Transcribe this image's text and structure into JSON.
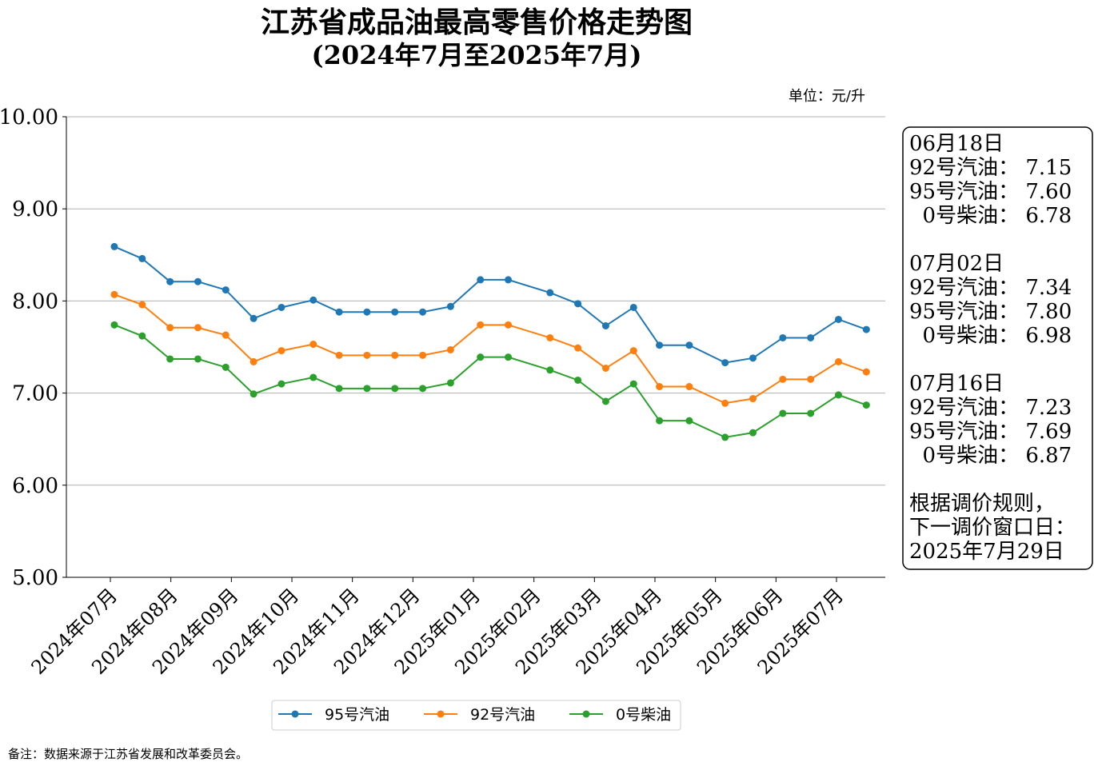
{
  "chart_data": {
    "type": "line",
    "title": "江苏省成品油最高零售价格走势图",
    "subtitle": "(2024年7月至2025年7月)",
    "unit_label": "单位：元/升",
    "ylim": [
      5.0,
      10.0
    ],
    "yticks": [
      "10.00",
      "9.00",
      "8.00",
      "7.00",
      "6.00",
      "5.00"
    ],
    "ytick_values": [
      10,
      9,
      8,
      7,
      6,
      5
    ],
    "grid": true,
    "legend_position": "bottom",
    "month_ticks": [
      "2024年07月",
      "2024年08月",
      "2024年09月",
      "2024年10月",
      "2024年11月",
      "2024年12月",
      "2025年01月",
      "2025年02月",
      "2025年03月",
      "2025年04月",
      "2025年05月",
      "2025年06月",
      "2025年07月"
    ],
    "x": [
      "2024-07-03",
      "2024-07-17",
      "2024-07-31",
      "2024-08-14",
      "2024-08-28",
      "2024-09-11",
      "2024-09-25",
      "2024-10-11",
      "2024-10-24",
      "2024-11-07",
      "2024-11-21",
      "2024-12-05",
      "2024-12-19",
      "2025-01-03",
      "2025-01-17",
      "2025-02-07",
      "2025-02-21",
      "2025-03-07",
      "2025-03-21",
      "2025-04-03",
      "2025-04-18",
      "2025-05-06",
      "2025-05-20",
      "2025-06-04",
      "2025-06-18",
      "2025-07-02",
      "2025-07-16"
    ],
    "series": [
      {
        "name": "95号汽油",
        "color": "#1f77b4",
        "values": [
          8.59,
          8.46,
          8.21,
          8.21,
          8.12,
          7.81,
          7.93,
          8.01,
          7.88,
          7.88,
          7.88,
          7.88,
          7.94,
          8.23,
          8.23,
          8.09,
          7.97,
          7.73,
          7.93,
          7.52,
          7.52,
          7.33,
          7.38,
          7.6,
          7.6,
          7.8,
          7.69
        ]
      },
      {
        "name": "92号汽油",
        "color": "#ff7f0e",
        "values": [
          8.07,
          7.96,
          7.71,
          7.71,
          7.63,
          7.34,
          7.46,
          7.53,
          7.41,
          7.41,
          7.41,
          7.41,
          7.47,
          7.74,
          7.74,
          7.6,
          7.49,
          7.27,
          7.46,
          7.07,
          7.07,
          6.89,
          6.94,
          7.15,
          7.15,
          7.34,
          7.23
        ]
      },
      {
        "name": "0号柴油",
        "color": "#2ca02c",
        "values": [
          7.74,
          7.62,
          7.37,
          7.37,
          7.28,
          6.99,
          7.1,
          7.17,
          7.05,
          7.05,
          7.05,
          7.05,
          7.11,
          7.39,
          7.39,
          7.25,
          7.14,
          6.91,
          7.1,
          6.7,
          6.7,
          6.52,
          6.57,
          6.78,
          6.78,
          6.98,
          6.87
        ]
      }
    ],
    "info_box": {
      "entries": [
        {
          "date": "06月18日",
          "rows": [
            {
              "label": "92号汽油：",
              "value": "7.15"
            },
            {
              "label": "95号汽油：",
              "value": "7.60"
            },
            {
              "label": "  0号柴油：",
              "value": "6.78"
            }
          ]
        },
        {
          "date": "07月02日",
          "rows": [
            {
              "label": "92号汽油：",
              "value": "7.34"
            },
            {
              "label": "95号汽油：",
              "value": "7.80"
            },
            {
              "label": "  0号柴油：",
              "value": "6.98"
            }
          ]
        },
        {
          "date": "07月16日",
          "rows": [
            {
              "label": "92号汽油：",
              "value": "7.23"
            },
            {
              "label": "95号汽油：",
              "value": "7.69"
            },
            {
              "label": "  0号柴油：",
              "value": "6.87"
            }
          ]
        }
      ],
      "note_lines": [
        "根据调价规则，",
        "下一调价窗口日：",
        "2025年7月29日"
      ]
    },
    "footnote": "备注：数据来源于江苏省发展和改革委员会。"
  }
}
